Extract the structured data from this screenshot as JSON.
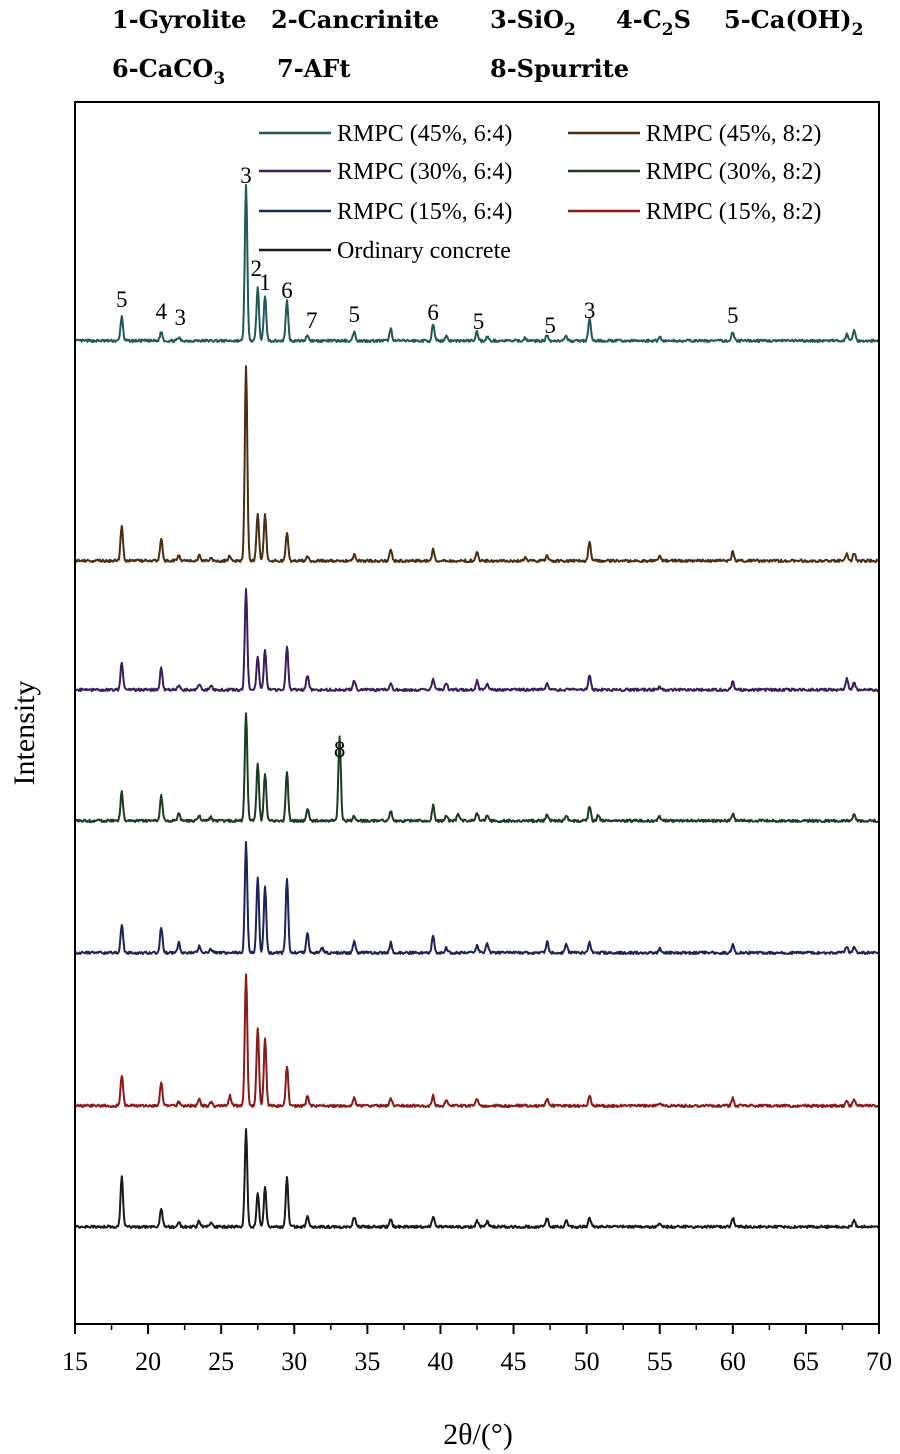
{
  "phase_key": {
    "row1": [
      {
        "id": "1",
        "name": "Gyrolite"
      },
      {
        "id": "2",
        "name": "Cancrinite"
      },
      {
        "id": "3",
        "name": "SiO",
        "sub": "2"
      },
      {
        "id": "4",
        "name": "C",
        "sub": "2",
        "tail": "S"
      },
      {
        "id": "5",
        "name": "Ca(OH)",
        "sub": "2"
      }
    ],
    "row2": [
      {
        "id": "6",
        "name": "CaCO",
        "sub": "3"
      },
      {
        "id": "7",
        "name": "AFt"
      },
      {
        "id": "8",
        "name": "Spurrite"
      }
    ]
  },
  "chart_data": {
    "type": "line",
    "xlabel": "2θ/(°)",
    "ylabel": "Intensity",
    "xlim": [
      15,
      70
    ],
    "xticks": [
      15,
      20,
      25,
      30,
      35,
      40,
      45,
      50,
      55,
      60,
      65,
      70
    ],
    "y_tick_labels": false,
    "grid": false,
    "legend_position": "top-right",
    "series": [
      {
        "name": "RMPC (45%, 6:4)",
        "color": "#1f5a58",
        "peaks": [
          [
            18.2,
            24
          ],
          [
            20.9,
            9
          ],
          [
            22.1,
            3
          ],
          [
            26.7,
            155
          ],
          [
            27.5,
            55
          ],
          [
            28.0,
            45
          ],
          [
            29.5,
            40
          ],
          [
            30.9,
            6
          ],
          [
            34.1,
            9
          ],
          [
            36.6,
            12
          ],
          [
            39.5,
            16
          ],
          [
            40.4,
            5
          ],
          [
            42.5,
            9
          ],
          [
            43.2,
            4
          ],
          [
            45.8,
            3
          ],
          [
            47.3,
            6
          ],
          [
            48.6,
            4
          ],
          [
            50.2,
            22
          ],
          [
            55.0,
            4
          ],
          [
            60.0,
            9
          ],
          [
            67.8,
            7
          ],
          [
            68.3,
            10
          ]
        ]
      },
      {
        "name": "RMPC (45%, 8:2)",
        "color": "#4a2e12",
        "peaks": [
          [
            18.2,
            35
          ],
          [
            20.9,
            22
          ],
          [
            22.1,
            5
          ],
          [
            23.5,
            5
          ],
          [
            24.3,
            3
          ],
          [
            25.6,
            5
          ],
          [
            26.7,
            195
          ],
          [
            27.5,
            48
          ],
          [
            28.0,
            46
          ],
          [
            29.5,
            28
          ],
          [
            30.9,
            5
          ],
          [
            34.1,
            6
          ],
          [
            36.6,
            11
          ],
          [
            39.5,
            11
          ],
          [
            42.5,
            9
          ],
          [
            45.8,
            3
          ],
          [
            47.3,
            5
          ],
          [
            50.2,
            20
          ],
          [
            55.0,
            5
          ],
          [
            60.0,
            10
          ],
          [
            67.8,
            7
          ],
          [
            68.3,
            8
          ]
        ]
      },
      {
        "name": "RMPC (30%, 6:4)",
        "color": "#3b1d5c",
        "peaks": [
          [
            18.2,
            28
          ],
          [
            20.9,
            22
          ],
          [
            22.1,
            4
          ],
          [
            23.5,
            6
          ],
          [
            24.3,
            5
          ],
          [
            26.7,
            100
          ],
          [
            27.5,
            34
          ],
          [
            28.0,
            40
          ],
          [
            29.5,
            44
          ],
          [
            30.9,
            14
          ],
          [
            34.1,
            10
          ],
          [
            36.6,
            7
          ],
          [
            39.5,
            11
          ],
          [
            40.4,
            7
          ],
          [
            42.5,
            9
          ],
          [
            43.2,
            6
          ],
          [
            47.3,
            7
          ],
          [
            50.2,
            14
          ],
          [
            55.0,
            3
          ],
          [
            60.0,
            8
          ],
          [
            67.8,
            11
          ],
          [
            68.3,
            8
          ]
        ]
      },
      {
        "name": "RMPC (30%, 8:2)",
        "color": "#1b3d1f",
        "peaks": [
          [
            18.2,
            29
          ],
          [
            20.9,
            25
          ],
          [
            22.1,
            7
          ],
          [
            23.5,
            5
          ],
          [
            24.3,
            4
          ],
          [
            26.7,
            108
          ],
          [
            27.5,
            58
          ],
          [
            28.0,
            48
          ],
          [
            29.5,
            48
          ],
          [
            30.9,
            12
          ],
          [
            33.1,
            84
          ],
          [
            34.1,
            5
          ],
          [
            36.6,
            10
          ],
          [
            39.5,
            15
          ],
          [
            40.4,
            6
          ],
          [
            41.2,
            6
          ],
          [
            42.5,
            8
          ],
          [
            43.2,
            6
          ],
          [
            47.3,
            7
          ],
          [
            48.6,
            6
          ],
          [
            50.2,
            15
          ],
          [
            50.8,
            6
          ],
          [
            55.0,
            4
          ],
          [
            60.0,
            8
          ],
          [
            68.3,
            7
          ]
        ]
      },
      {
        "name": "RMPC (15%, 6:4)",
        "color": "#1a2459",
        "peaks": [
          [
            18.2,
            28
          ],
          [
            20.9,
            26
          ],
          [
            22.1,
            10
          ],
          [
            23.5,
            7
          ],
          [
            24.3,
            4
          ],
          [
            26.7,
            110
          ],
          [
            27.5,
            76
          ],
          [
            28.0,
            66
          ],
          [
            29.5,
            74
          ],
          [
            30.9,
            20
          ],
          [
            31.9,
            5
          ],
          [
            34.1,
            12
          ],
          [
            36.6,
            10
          ],
          [
            39.5,
            17
          ],
          [
            40.4,
            5
          ],
          [
            42.5,
            7
          ],
          [
            43.2,
            9
          ],
          [
            47.3,
            11
          ],
          [
            48.6,
            9
          ],
          [
            50.2,
            11
          ],
          [
            55.0,
            4
          ],
          [
            60.0,
            9
          ],
          [
            67.8,
            7
          ],
          [
            68.3,
            6
          ]
        ]
      },
      {
        "name": "RMPC (15%, 8:2)",
        "color": "#8b1a1a",
        "peaks": [
          [
            18.2,
            31
          ],
          [
            20.9,
            24
          ],
          [
            22.1,
            4
          ],
          [
            23.5,
            6
          ],
          [
            24.3,
            4
          ],
          [
            25.6,
            10
          ],
          [
            26.7,
            132
          ],
          [
            27.5,
            78
          ],
          [
            28.0,
            68
          ],
          [
            29.5,
            40
          ],
          [
            30.9,
            10
          ],
          [
            34.1,
            8
          ],
          [
            36.6,
            7
          ],
          [
            39.5,
            10
          ],
          [
            40.4,
            5
          ],
          [
            42.5,
            7
          ],
          [
            47.3,
            7
          ],
          [
            50.2,
            11
          ],
          [
            55.0,
            3
          ],
          [
            60.0,
            8
          ],
          [
            67.8,
            6
          ],
          [
            68.3,
            6
          ]
        ]
      },
      {
        "name": "Ordinary concrete",
        "color": "#1a1a1a",
        "peaks": [
          [
            18.2,
            50
          ],
          [
            20.9,
            18
          ],
          [
            22.1,
            5
          ],
          [
            23.5,
            6
          ],
          [
            24.3,
            4
          ],
          [
            26.7,
            97
          ],
          [
            27.5,
            34
          ],
          [
            28.0,
            39
          ],
          [
            29.5,
            49
          ],
          [
            30.9,
            11
          ],
          [
            34.1,
            10
          ],
          [
            36.6,
            7
          ],
          [
            39.5,
            10
          ],
          [
            42.5,
            6
          ],
          [
            43.2,
            5
          ],
          [
            47.3,
            9
          ],
          [
            48.6,
            7
          ],
          [
            50.2,
            9
          ],
          [
            55.0,
            4
          ],
          [
            60.0,
            9
          ],
          [
            68.3,
            6
          ]
        ]
      }
    ],
    "peak_labels": [
      {
        "text": "5",
        "x": 18.2
      },
      {
        "text": "4",
        "x": 20.9
      },
      {
        "text": "3",
        "x": 22.2
      },
      {
        "text": "3",
        "x": 26.7
      },
      {
        "text": "2",
        "x": 27.4
      },
      {
        "text": "1",
        "x": 28.0
      },
      {
        "text": "6",
        "x": 29.5
      },
      {
        "text": "7",
        "x": 31.2
      },
      {
        "text": "5",
        "x": 34.1
      },
      {
        "text": "6",
        "x": 39.5
      },
      {
        "text": "5",
        "x": 42.6
      },
      {
        "text": "5",
        "x": 47.5
      },
      {
        "text": "3",
        "x": 50.2
      },
      {
        "text": "5",
        "x": 60.0
      },
      {
        "text": "8",
        "x": 33.1
      }
    ]
  }
}
